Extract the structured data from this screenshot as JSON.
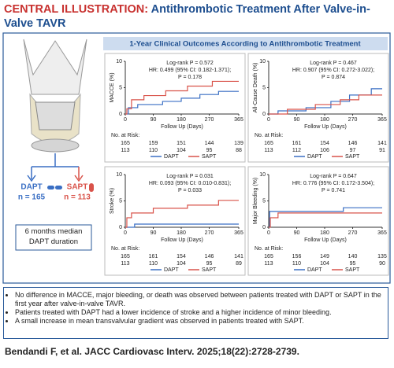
{
  "header": {
    "label": "CENTRAL ILLUSTRATION:",
    "title": "Antithrombotic Treatment After Valve-in-Valve TAVR"
  },
  "left_panel": {
    "groups": [
      {
        "name": "DAPT",
        "n": "n = 165"
      },
      {
        "name": "SAPT",
        "n": "n = 113"
      }
    ],
    "note": "6 months median DAPT duration"
  },
  "panel_title": "1-Year Clinical Outcomes According to Antithrombotic Treatment",
  "chart_data": [
    {
      "type": "line",
      "y_label": "MACCE (%)",
      "x_label": "Follow Up (Days)",
      "xlim": [
        0,
        365
      ],
      "ylim": [
        0,
        10
      ],
      "xticks": [
        0,
        90,
        180,
        270,
        365
      ],
      "yticks": [
        0,
        5,
        10
      ],
      "annotations": [
        "Log-rank P = 0.572",
        "HR: 0.499 (95% CI: 0.182-1.371);",
        "P = 0.178"
      ],
      "series": [
        {
          "name": "DAPT",
          "color": "#3a6fc4",
          "x": [
            0,
            10,
            10,
            40,
            40,
            120,
            120,
            180,
            180,
            240,
            240,
            300,
            300,
            365
          ],
          "values": [
            0,
            0,
            1.2,
            1.2,
            1.8,
            1.8,
            2.4,
            2.4,
            3,
            3,
            3.7,
            3.7,
            4.3,
            4.3
          ]
        },
        {
          "name": "SAPT",
          "color": "#d9534a",
          "x": [
            0,
            5,
            5,
            20,
            20,
            60,
            60,
            130,
            130,
            200,
            200,
            280,
            280,
            365
          ],
          "values": [
            0,
            0,
            1,
            1,
            2.7,
            2.7,
            3.5,
            3.5,
            4.4,
            4.4,
            5.3,
            5.3,
            6.2,
            6.2
          ]
        }
      ],
      "risk_table": {
        "title": "No. at Risk:",
        "rows": [
          [
            165,
            159,
            151,
            144,
            139
          ],
          [
            113,
            110,
            104,
            95,
            88
          ]
        ]
      }
    },
    {
      "type": "line",
      "y_label": "All-Cause Death (%)",
      "x_label": "Follow Up (Days)",
      "xlim": [
        0,
        365
      ],
      "ylim": [
        0,
        10
      ],
      "xticks": [
        0,
        90,
        180,
        270,
        365
      ],
      "yticks": [
        0,
        5,
        10
      ],
      "annotations": [
        "Log-rank P = 0.467",
        "HR: 0.907 (95% CI: 0.272-3.022);",
        "P = 0.874"
      ],
      "series": [
        {
          "name": "DAPT",
          "color": "#3a6fc4",
          "x": [
            0,
            30,
            30,
            120,
            120,
            200,
            200,
            260,
            260,
            330,
            330,
            365
          ],
          "values": [
            0,
            0,
            0.6,
            0.6,
            1.2,
            1.2,
            2.4,
            2.4,
            3.6,
            3.6,
            4.8,
            4.8
          ]
        },
        {
          "name": "SAPT",
          "color": "#d9534a",
          "x": [
            0,
            60,
            60,
            150,
            150,
            230,
            230,
            290,
            290,
            365
          ],
          "values": [
            0,
            0,
            0.9,
            0.9,
            1.8,
            1.8,
            2.7,
            2.7,
            3.6,
            3.6
          ]
        }
      ],
      "risk_table": {
        "title": "No. at Risk:",
        "rows": [
          [
            165,
            161,
            154,
            146,
            141
          ],
          [
            113,
            112,
            106,
            97,
            91
          ]
        ]
      }
    },
    {
      "type": "line",
      "y_label": "Stroke (%)",
      "x_label": "Follow Up (Days)",
      "xlim": [
        0,
        365
      ],
      "ylim": [
        0,
        10
      ],
      "xticks": [
        0,
        90,
        180,
        270,
        365
      ],
      "yticks": [
        0,
        5,
        10
      ],
      "annotations": [
        "Log-rank P = 0.031",
        "HR: 0.093 (95% CI: 0.010-0.831);",
        "P = 0.033"
      ],
      "series": [
        {
          "name": "DAPT",
          "color": "#3a6fc4",
          "x": [
            0,
            30,
            30,
            365
          ],
          "values": [
            0,
            0,
            0.6,
            0.6
          ]
        },
        {
          "name": "SAPT",
          "color": "#d9534a",
          "x": [
            0,
            5,
            5,
            20,
            20,
            90,
            90,
            200,
            200,
            300,
            300,
            365
          ],
          "values": [
            0,
            0,
            1.8,
            1.8,
            2.7,
            2.7,
            3.6,
            3.6,
            4.2,
            4.2,
            5.1,
            5.1
          ]
        }
      ],
      "risk_table": {
        "title": "No. at Risk:",
        "rows": [
          [
            165,
            161,
            154,
            146,
            141
          ],
          [
            113,
            110,
            104,
            95,
            89
          ]
        ]
      }
    },
    {
      "type": "line",
      "y_label": "Major Bleeding (%)",
      "x_label": "Follow Up (Days)",
      "xlim": [
        0,
        365
      ],
      "ylim": [
        0,
        10
      ],
      "xticks": [
        0,
        90,
        180,
        270,
        365
      ],
      "yticks": [
        0,
        5,
        10
      ],
      "annotations": [
        "Log-rank P = 0.647",
        "HR: 0.776 (95% CI: 0.172-3.504);",
        "P = 0.741"
      ],
      "series": [
        {
          "name": "DAPT",
          "color": "#3a6fc4",
          "x": [
            0,
            3,
            3,
            240,
            240,
            365
          ],
          "values": [
            0,
            0,
            3,
            3,
            3.7,
            3.7
          ]
        },
        {
          "name": "SAPT",
          "color": "#d9534a",
          "x": [
            0,
            5,
            5,
            30,
            30,
            365
          ],
          "values": [
            0,
            0,
            1.8,
            1.8,
            2.7,
            2.7
          ]
        }
      ],
      "risk_table": {
        "title": "No. at Risk:",
        "rows": [
          [
            165,
            156,
            149,
            140,
            135
          ],
          [
            113,
            110,
            104,
            95,
            90
          ]
        ]
      }
    }
  ],
  "bullets": [
    "No difference in MACCE, major bleeding, or death was observed between patients treated with DAPT or SAPT in the first year after valve-in-valve TAVR.",
    "Patients treated with DAPT had a lower incidence of stroke and a higher incidence of minor bleeding.",
    "A small increase in mean transvalvular gradient was observed in patients treated with SAPT."
  ],
  "citation": "Bendandi F, et al. JACC Cardiovasc Interv. 2025;18(22):2728-2739."
}
